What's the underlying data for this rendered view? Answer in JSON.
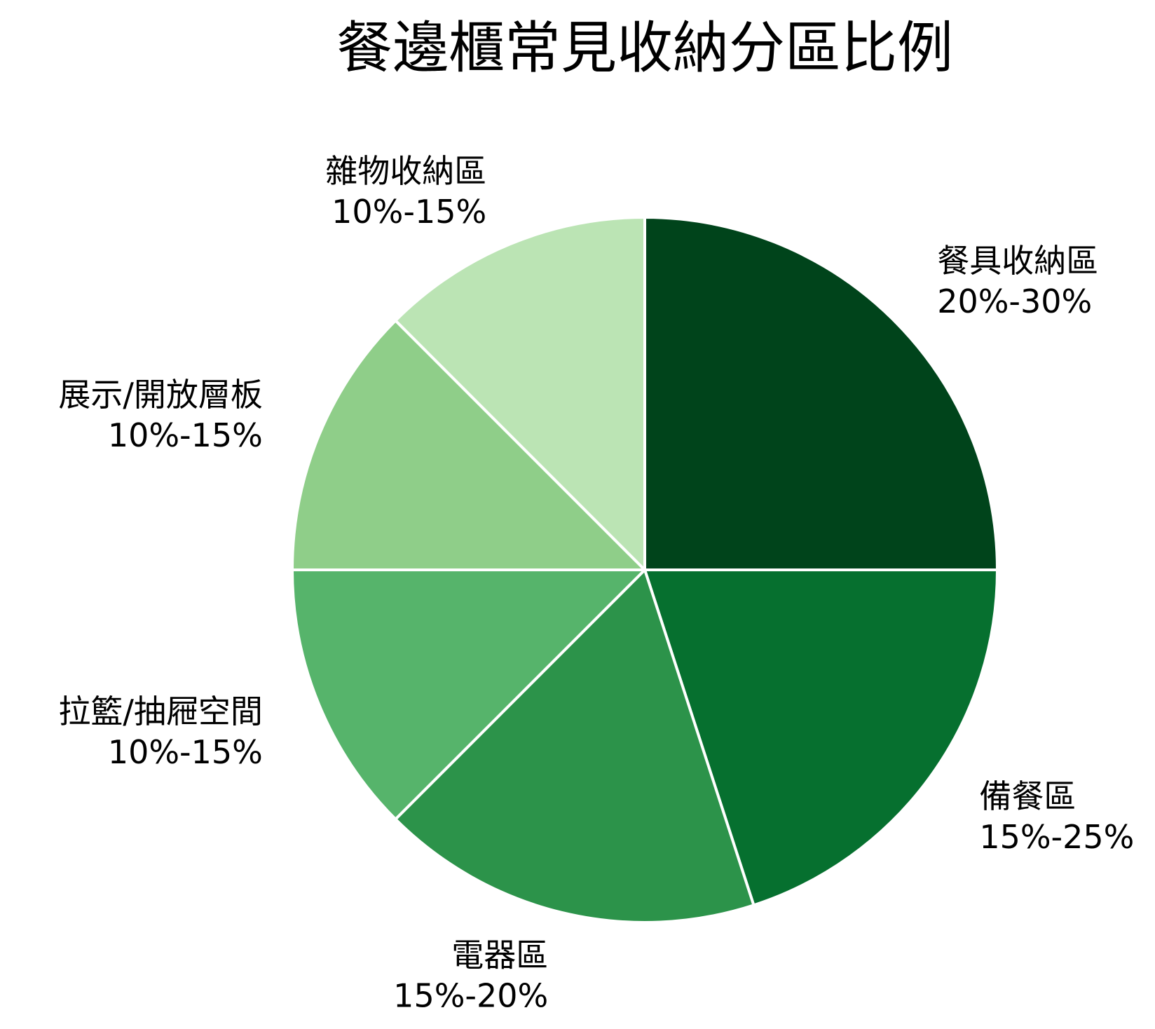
{
  "chart_data": {
    "type": "pie",
    "title": "餐邊櫃常見收納分區比例",
    "labels": [
      "餐具收納區",
      "備餐區",
      "電器區",
      "拉籃/抽屜空間",
      "展示/開放層板",
      "雜物收納區"
    ],
    "ranges": [
      "20%-30%",
      "15%-25%",
      "15%-20%",
      "10%-15%",
      "10%-15%",
      "10%-15%"
    ],
    "values": [
      25,
      20,
      17.5,
      12.5,
      12.5,
      12.5
    ],
    "start_angle_deg": 90,
    "direction": "clockwise",
    "colors": [
      "#00441b",
      "#06702f",
      "#2c934a",
      "#56b46b",
      "#8fce89",
      "#bbe4b4"
    ],
    "edge_color": "#ffffff",
    "legend": "none"
  }
}
